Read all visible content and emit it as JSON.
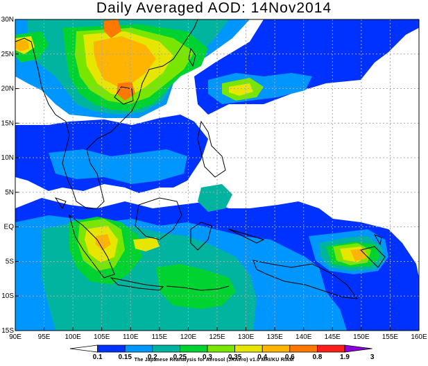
{
  "title": "Daily Averaged AOD: 14Nov2014",
  "credit": "The Japanese Reanalysis for Aerosol (JRAero) v1.0 MRI/KU RIAM",
  "map": {
    "lon_range": [
      90,
      160
    ],
    "lat_range": [
      -15,
      30
    ],
    "lon_ticks": [
      "90E",
      "95E",
      "100E",
      "105E",
      "110E",
      "115E",
      "120E",
      "125E",
      "130E",
      "135E",
      "140E",
      "145E",
      "150E",
      "155E",
      "160E"
    ],
    "lat_ticks": [
      "30N",
      "25N",
      "20N",
      "15N",
      "10N",
      "5N",
      "EQ",
      "5S",
      "10S",
      "15S"
    ],
    "gridlines": true
  },
  "colorbar": {
    "labels": [
      "0.1",
      "0.15",
      "0.2",
      "0.25",
      "0.3",
      "0.35",
      "0.4",
      "0.6",
      "0.8",
      "1.9",
      "3"
    ],
    "colors": [
      "#ffffff",
      "#0032ff",
      "#0096ff",
      "#00b4a0",
      "#00d232",
      "#78e600",
      "#e6e600",
      "#ffb400",
      "#ff7800",
      "#ff1e1e",
      "#8c00dc"
    ]
  }
}
